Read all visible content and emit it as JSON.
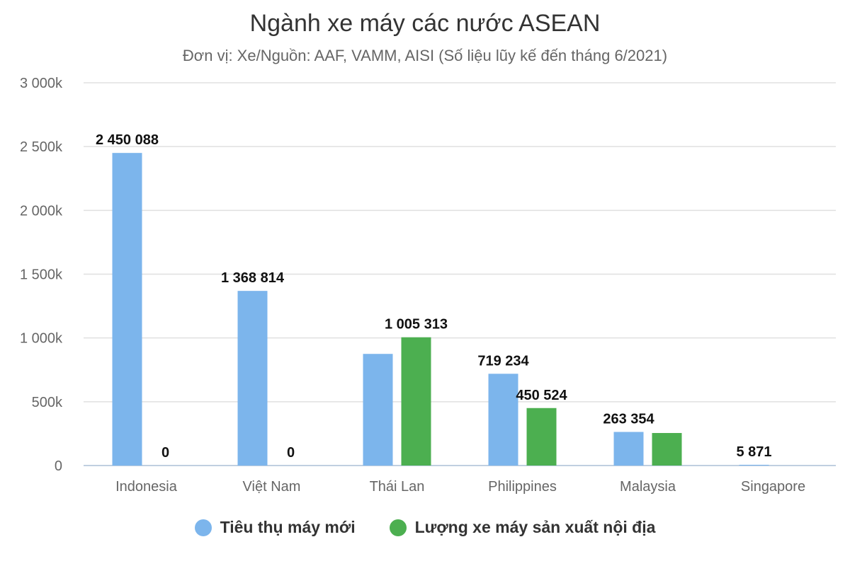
{
  "chart_data": {
    "type": "bar",
    "title": "Ngành xe máy các nước ASEAN",
    "subtitle": "Đơn vị: Xe/Nguồn: AAF, VAMM, AISI (Số liệu lũy kế đến tháng 6/2021)",
    "categories": [
      "Indonesia",
      "Việt Nam",
      "Thái Lan",
      "Philippines",
      "Malaysia",
      "Singapore"
    ],
    "series": [
      {
        "name": "Tiêu thụ máy mới",
        "color": "#7cb5ec",
        "values": [
          2450088,
          1368814,
          875000,
          719234,
          263354,
          5871
        ],
        "labels": [
          "2 450 088",
          "1 368 814",
          "",
          "719 234",
          "263 354",
          "5 871"
        ]
      },
      {
        "name": "Lượng xe máy sản xuất nội địa",
        "color": "#4caf50",
        "values": [
          0,
          0,
          1005313,
          450524,
          255000,
          0
        ],
        "labels": [
          "0",
          "0",
          "1 005 313",
          "450 524",
          "",
          ""
        ]
      }
    ],
    "y_ticks": [
      0,
      500000,
      1000000,
      1500000,
      2000000,
      2500000,
      3000000
    ],
    "y_tick_labels": [
      "0",
      "500k",
      "1 000k",
      "1 500k",
      "2 000k",
      "2 500k",
      "3 000k"
    ],
    "ylim": [
      0,
      3000000
    ],
    "grid": true,
    "legend_position": "bottom"
  }
}
